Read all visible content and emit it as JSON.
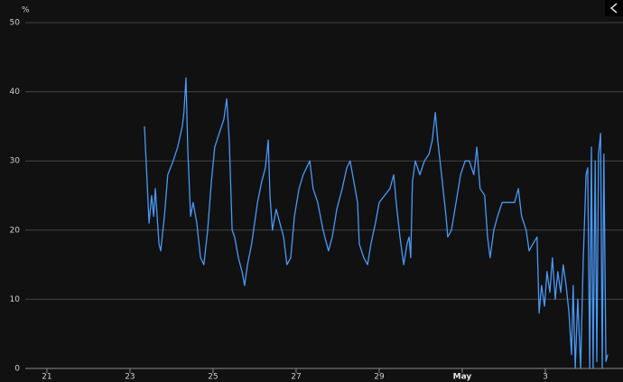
{
  "chart_data": {
    "type": "line",
    "y_label": "%",
    "color": "#4a98f7",
    "grid": true,
    "xlim": [
      20.48,
      34.87
    ],
    "ylim": [
      0,
      50
    ],
    "xticks": [
      21,
      23,
      25,
      27,
      29,
      {
        "value": 31,
        "label": "May"
      },
      {
        "value": 33,
        "label": "3"
      }
    ],
    "yticks": [
      0,
      10,
      20,
      30,
      40,
      50
    ],
    "x": [
      23.35,
      23.46,
      23.52,
      23.57,
      23.61,
      23.7,
      23.74,
      23.83,
      23.91,
      24.04,
      24.15,
      24.26,
      24.3,
      24.35,
      24.39,
      24.46,
      24.52,
      24.61,
      24.7,
      24.78,
      24.87,
      24.96,
      25.04,
      25.15,
      25.26,
      25.33,
      25.39,
      25.46,
      25.52,
      25.61,
      25.7,
      25.76,
      25.83,
      25.93,
      26.07,
      26.17,
      26.26,
      26.33,
      26.37,
      26.43,
      26.52,
      26.61,
      26.7,
      26.78,
      26.87,
      26.96,
      27.07,
      27.17,
      27.33,
      27.41,
      27.52,
      27.65,
      27.78,
      27.87,
      27.98,
      28.11,
      28.22,
      28.3,
      28.39,
      28.48,
      28.52,
      28.63,
      28.72,
      28.8,
      28.91,
      29,
      29.13,
      29.26,
      29.35,
      29.41,
      29.5,
      29.59,
      29.67,
      29.72,
      29.76,
      29.8,
      29.87,
      29.98,
      30.09,
      30.2,
      30.28,
      30.35,
      30.41,
      30.52,
      30.61,
      30.65,
      30.74,
      30.85,
      30.96,
      31.07,
      31.17,
      31.28,
      31.35,
      31.43,
      31.54,
      31.61,
      31.67,
      31.76,
      31.85,
      31.96,
      32.09,
      32.26,
      32.35,
      32.43,
      32.54,
      32.61,
      32.7,
      32.8,
      32.85,
      32.91,
      32.98,
      33.04,
      33.11,
      33.17,
      33.24,
      33.3,
      33.37,
      33.43,
      33.5,
      33.57,
      33.63,
      33.67,
      33.72,
      33.78,
      33.85,
      33.91,
      33.98,
      34.02,
      34.07,
      34.11,
      34.15,
      34.2,
      34.24,
      34.28,
      34.33,
      34.37,
      34.41,
      34.46,
      34.5
    ],
    "values": [
      35,
      21,
      25,
      22,
      26,
      18,
      17,
      22,
      28,
      30,
      32,
      35,
      37,
      42,
      32,
      22,
      24,
      21,
      16,
      15,
      20,
      27,
      32,
      34,
      36,
      39,
      33,
      20,
      19,
      16,
      14,
      12,
      15,
      18,
      24,
      27,
      29,
      33,
      25,
      20,
      23,
      21,
      19,
      15,
      16,
      22,
      26,
      28,
      30,
      26,
      24,
      20,
      17,
      19,
      23,
      26,
      29,
      30,
      27,
      24,
      18,
      16,
      15,
      18,
      21,
      24,
      25,
      26,
      28,
      24,
      19,
      15,
      18,
      19,
      16,
      27,
      30,
      28,
      30,
      31,
      33,
      37,
      33,
      27,
      22,
      19,
      20,
      24,
      28,
      30,
      30,
      28,
      32,
      26,
      25,
      19,
      16,
      20,
      22,
      24,
      24,
      24,
      26,
      22,
      20,
      17,
      18,
      19,
      8,
      12,
      9,
      14,
      11,
      16,
      10,
      14,
      11,
      15,
      12,
      8,
      2,
      12,
      0,
      10,
      0,
      15,
      28,
      29,
      0,
      32,
      0,
      30,
      1,
      31,
      34,
      0,
      31,
      1,
      2
    ]
  }
}
